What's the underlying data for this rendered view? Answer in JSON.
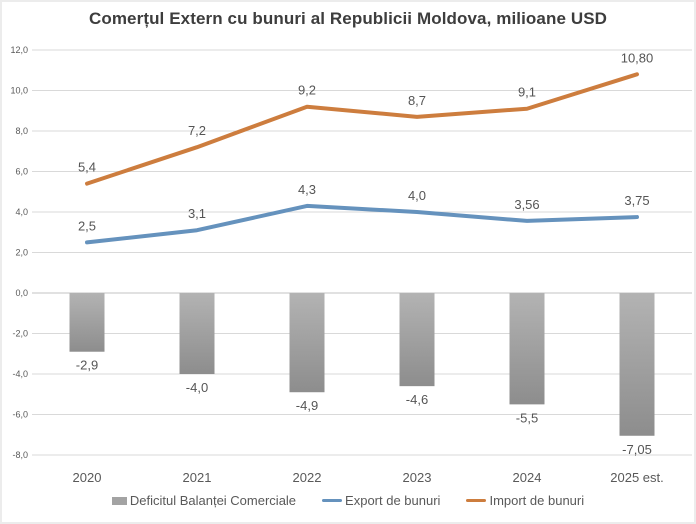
{
  "chart_data": {
    "type": "combo",
    "title": "Comerțul Extern cu bunuri al Republicii Moldova, milioane USD",
    "categories": [
      "2020",
      "2021",
      "2022",
      "2023",
      "2024",
      "2025 est."
    ],
    "y_axis": {
      "min": -8,
      "max": 12,
      "step": 2,
      "ticks": [
        {
          "v": 12,
          "label": "12,0"
        },
        {
          "v": 10,
          "label": "10,0"
        },
        {
          "v": 8,
          "label": "8,0"
        },
        {
          "v": 6,
          "label": "6,0"
        },
        {
          "v": 4,
          "label": "4,0"
        },
        {
          "v": 2,
          "label": "2,0"
        },
        {
          "v": 0,
          "label": "0,0"
        },
        {
          "v": -2,
          "label": "-2,0"
        },
        {
          "v": -4,
          "label": "-4,0"
        },
        {
          "v": -6,
          "label": "-6,0"
        },
        {
          "v": -8,
          "label": "-8,0"
        }
      ]
    },
    "grid": true,
    "legend_position": "bottom",
    "series": [
      {
        "name": "Deficitul Balanței Comerciale",
        "type": "bar",
        "color": "#a3a3a3",
        "values": [
          -2.9,
          -4.0,
          -4.9,
          -4.6,
          -5.5,
          -7.05
        ],
        "labels": [
          "-2,9",
          "-4,0",
          "-4,9",
          "-4,6",
          "-5,5",
          "-7,05"
        ]
      },
      {
        "name": "Export de bunuri",
        "type": "line",
        "color": "#6592bd",
        "values": [
          2.5,
          3.1,
          4.3,
          4.0,
          3.56,
          3.75
        ],
        "labels": [
          "2,5",
          "3,1",
          "4,3",
          "4,0",
          "3,56",
          "3,75"
        ]
      },
      {
        "name": "Import de bunuri",
        "type": "line",
        "color": "#cd7d3e",
        "values": [
          5.4,
          7.2,
          9.2,
          8.7,
          9.1,
          10.8
        ],
        "labels": [
          "5,4",
          "7,2",
          "9,2",
          "8,7",
          "9,1",
          "10,80"
        ]
      }
    ],
    "colors": {
      "data_label": "#555555",
      "axis_label": "#595959",
      "gridline": "#d9d9d9",
      "zero_line": "#c3c3c3",
      "bar_gradient_top": "#b3b3b3",
      "bar_gradient_bottom": "#8d8d8d"
    }
  }
}
